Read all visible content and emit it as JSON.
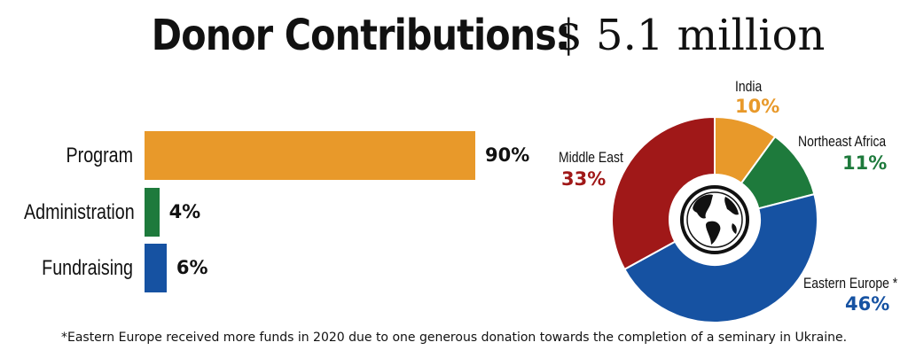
{
  "title": {
    "main": "Donor Contributions:",
    "amount": "$ 5.1 million"
  },
  "chart_data": [
    {
      "type": "bar",
      "orientation": "horizontal",
      "categories": [
        "Program",
        "Administration",
        "Fundraising"
      ],
      "values": [
        90,
        4,
        6
      ],
      "value_labels": [
        "90%",
        "4%",
        "6%"
      ],
      "colors": [
        "#E8992A",
        "#1E7A3C",
        "#1652A2"
      ],
      "xlim": [
        0,
        100
      ],
      "grid": false
    },
    {
      "type": "pie",
      "style": "donut",
      "center_icon": "globe-icon",
      "slices": [
        {
          "name": "India",
          "value": 10,
          "label": "10%",
          "color": "#E8992A"
        },
        {
          "name": "Northeast Africa",
          "value": 11,
          "label": "11%",
          "color": "#1E7A3C"
        },
        {
          "name": "Eastern Europe *",
          "value": 46,
          "label": "46%",
          "color": "#1652A2"
        },
        {
          "name": "Middle East",
          "value": 33,
          "label": "33%",
          "color": "#A01818"
        }
      ]
    }
  ],
  "footnote": "*Eastern Europe received more funds in 2020 due to one generous donation towards the completion of a seminary in Ukraine."
}
